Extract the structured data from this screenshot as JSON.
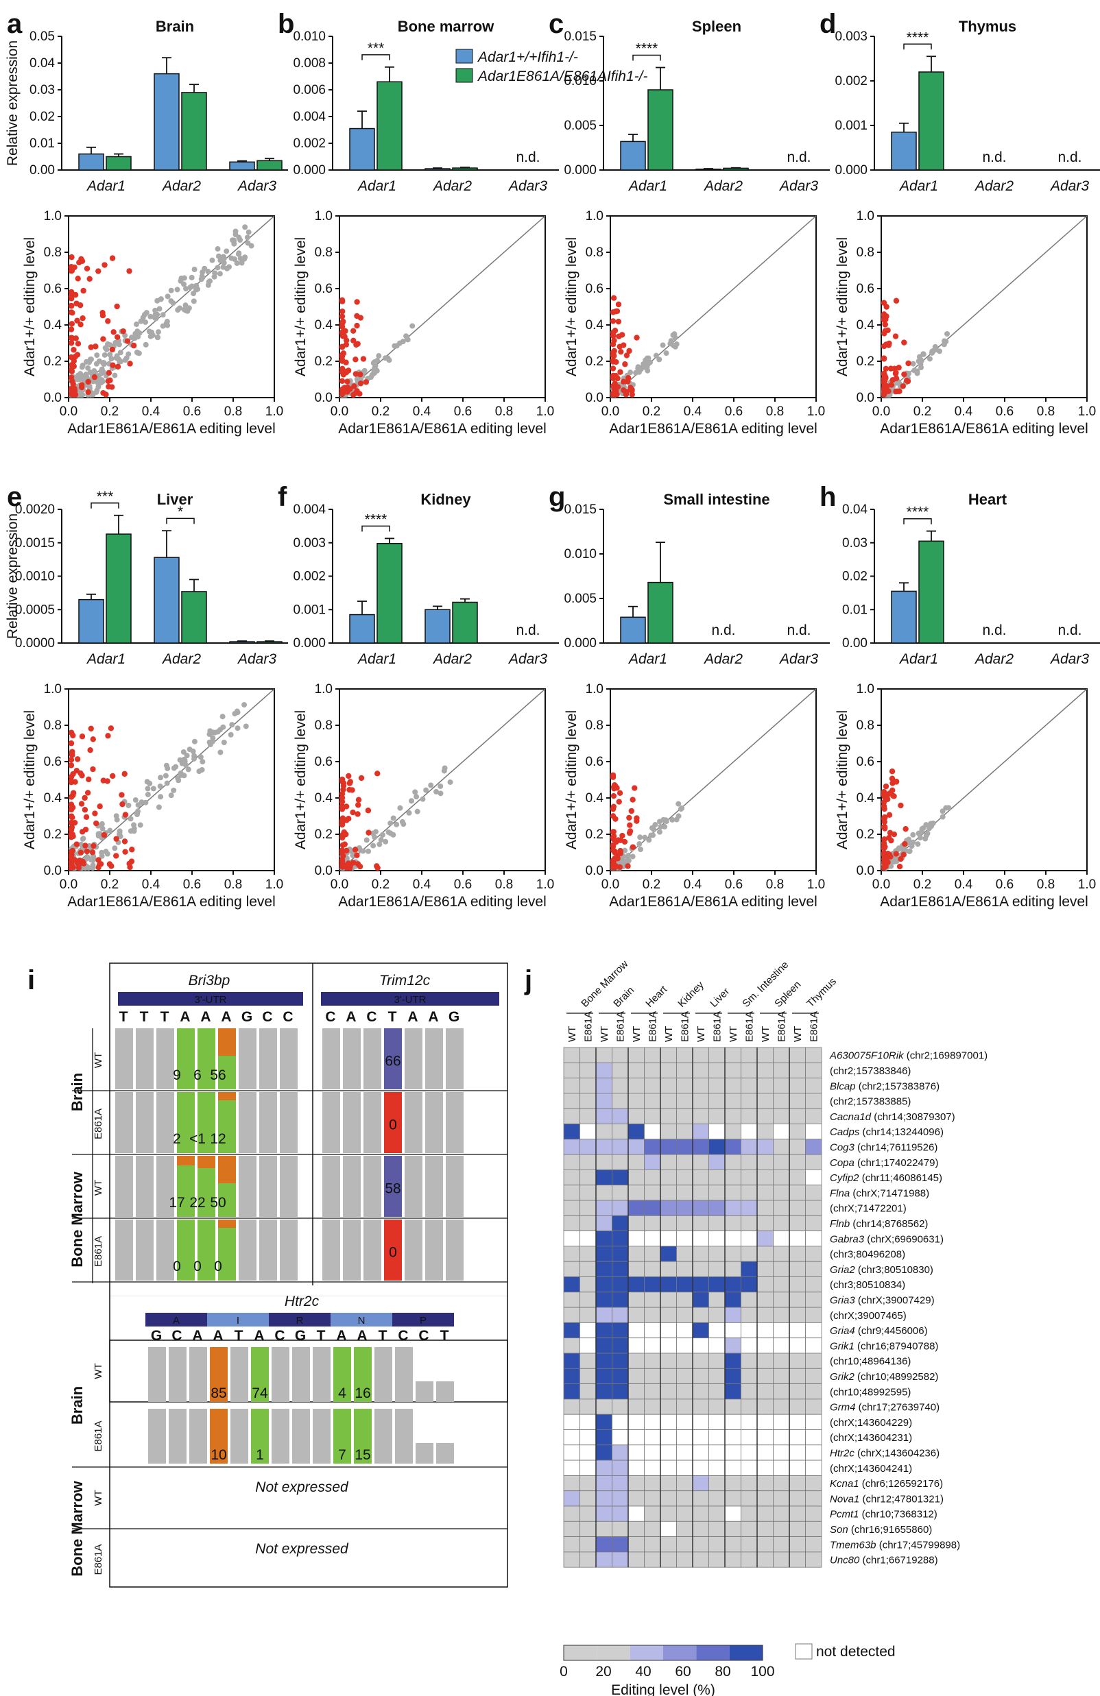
{
  "colors": {
    "wt": "#5b95cf",
    "mut": "#2e9e5b",
    "point_red": "#e03325",
    "point_gray": "#a9a9a9",
    "A": "#7ac143",
    "G": "#d9731e",
    "C": "#5b5aa3",
    "T": "#e03325",
    "grayCell": "#b8b8b8",
    "heatDark": "#2f4fae"
  },
  "panels_top": [
    {
      "letter": "a",
      "title": "Brain",
      "ylim": [
        0,
        0.05
      ],
      "ticks": [
        "0.00",
        "0.01",
        "0.02",
        "0.03",
        "0.04",
        "0.05"
      ],
      "genes": [
        "Adar1",
        "Adar2",
        "Adar3"
      ],
      "wt": [
        0.006,
        0.036,
        0.003
      ],
      "wt_err": [
        0.0025,
        0.006,
        0.0004
      ],
      "mut": [
        0.005,
        0.029,
        0.0035
      ],
      "mut_err": [
        0.001,
        0.003,
        0.0008
      ],
      "nd": [
        false,
        false,
        false
      ],
      "sig": [],
      "scatter_seed": 1
    },
    {
      "letter": "b",
      "title": "Bone marrow",
      "ylim": [
        0,
        0.01
      ],
      "ticks": [
        "0.000",
        "0.002",
        "0.004",
        "0.006",
        "0.008",
        "0.010"
      ],
      "genes": [
        "Adar1",
        "Adar2",
        "Adar3"
      ],
      "wt": [
        0.0031,
        0.0001,
        0
      ],
      "wt_err": [
        0.0013,
        5e-05,
        0
      ],
      "mut": [
        0.0066,
        0.00015,
        0
      ],
      "mut_err": [
        0.0011,
        5e-05,
        0
      ],
      "nd": [
        false,
        false,
        true
      ],
      "sig": [
        {
          "g": 0,
          "t": "***"
        }
      ],
      "scatter_seed": 2
    },
    {
      "letter": "c",
      "title": "Spleen",
      "ylim": [
        0,
        0.015
      ],
      "ticks": [
        "0.000",
        "0.005",
        "0.010",
        "0.015"
      ],
      "genes": [
        "Adar1",
        "Adar2",
        "Adar3"
      ],
      "wt": [
        0.0032,
        0.0001,
        0
      ],
      "wt_err": [
        0.0008,
        5e-05,
        0
      ],
      "mut": [
        0.009,
        0.0002,
        0
      ],
      "mut_err": [
        0.0025,
        5e-05,
        0
      ],
      "nd": [
        false,
        false,
        true
      ],
      "sig": [
        {
          "g": 0,
          "t": "****"
        }
      ],
      "scatter_seed": 3
    },
    {
      "letter": "d",
      "title": "Thymus",
      "ylim": [
        0,
        0.003
      ],
      "ticks": [
        "0.000",
        "0.001",
        "0.002",
        "0.003"
      ],
      "genes": [
        "Adar1",
        "Adar2",
        "Adar3"
      ],
      "wt": [
        0.00085,
        0,
        0
      ],
      "wt_err": [
        0.0002,
        0,
        0
      ],
      "mut": [
        0.0022,
        0,
        0
      ],
      "mut_err": [
        0.00035,
        0,
        0
      ],
      "nd": [
        false,
        true,
        true
      ],
      "sig": [
        {
          "g": 0,
          "t": "****"
        }
      ],
      "scatter_seed": 4
    },
    {
      "letter": "e",
      "title": "Liver",
      "ylim": [
        0,
        0.002
      ],
      "ticks": [
        "0.0000",
        "0.0005",
        "0.0010",
        "0.0015",
        "0.0020"
      ],
      "genes": [
        "Adar1",
        "Adar2",
        "Adar3"
      ],
      "wt": [
        0.00065,
        0.00128,
        2e-05
      ],
      "wt_err": [
        8e-05,
        0.0004,
        1e-05
      ],
      "mut": [
        0.00163,
        0.00077,
        2e-05
      ],
      "mut_err": [
        0.00028,
        0.00018,
        1e-05
      ],
      "nd": [
        false,
        false,
        false
      ],
      "sig": [
        {
          "g": 0,
          "t": "***"
        },
        {
          "g": 1,
          "t": "*"
        }
      ],
      "scatter_seed": 5
    },
    {
      "letter": "f",
      "title": "Kidney",
      "ylim": [
        0,
        0.004
      ],
      "ticks": [
        "0.000",
        "0.001",
        "0.002",
        "0.003",
        "0.004"
      ],
      "genes": [
        "Adar1",
        "Adar2",
        "Adar3"
      ],
      "wt": [
        0.00085,
        0.001,
        0
      ],
      "wt_err": [
        0.0004,
        0.0001,
        0
      ],
      "mut": [
        0.00298,
        0.00122,
        0
      ],
      "mut_err": [
        0.00015,
        0.0001,
        0
      ],
      "nd": [
        false,
        false,
        true
      ],
      "sig": [
        {
          "g": 0,
          "t": "****"
        }
      ],
      "scatter_seed": 6
    },
    {
      "letter": "g",
      "title": "Small intestine",
      "ylim": [
        0,
        0.015
      ],
      "ticks": [
        "0.000",
        "0.005",
        "0.010",
        "0.015"
      ],
      "genes": [
        "Adar1",
        "Adar2",
        "Adar3"
      ],
      "wt": [
        0.0029,
        0,
        0
      ],
      "wt_err": [
        0.0012,
        0,
        0
      ],
      "mut": [
        0.0068,
        0,
        0
      ],
      "mut_err": [
        0.0045,
        0,
        0
      ],
      "nd": [
        false,
        true,
        true
      ],
      "sig": [],
      "scatter_seed": 7
    },
    {
      "letter": "h",
      "title": "Heart",
      "ylim": [
        0,
        0.04
      ],
      "ticks": [
        "0.00",
        "0.01",
        "0.02",
        "0.03",
        "0.04"
      ],
      "genes": [
        "Adar1",
        "Adar2",
        "Adar3"
      ],
      "wt": [
        0.0155,
        0,
        0
      ],
      "wt_err": [
        0.0025,
        0,
        0
      ],
      "mut": [
        0.0305,
        0,
        0
      ],
      "mut_err": [
        0.003,
        0,
        0
      ],
      "nd": [
        false,
        true,
        true
      ],
      "sig": [
        {
          "g": 0,
          "t": "****"
        }
      ],
      "scatter_seed": 8
    }
  ],
  "labels": {
    "rel_expr": "Relative expression",
    "nd": "n.d.",
    "legend_wt": "Adar1+/+Ifih1-/-",
    "legend_mut": "Adar1E861A/E861AIfih1-/-",
    "scatter_x": "Adar1E861A/E861A editing level",
    "scatter_y": "Adar1+/+ editing level",
    "scatter_ticks": [
      "0.0",
      "0.2",
      "0.4",
      "0.6",
      "0.8",
      "1.0"
    ]
  },
  "panel_i": {
    "letter": "i",
    "gene1": "Bri3bp",
    "gene2": "Trim12c",
    "utr1": "3'-UTR",
    "utr2": "3'-UTR",
    "seq1": [
      "T",
      "T",
      "T",
      "A",
      "A",
      "A",
      "G",
      "C",
      "C"
    ],
    "seq2": [
      "C",
      "A",
      "C",
      "T",
      "A",
      "A",
      "G"
    ],
    "tissues": [
      "Brain",
      "Bone Marrow"
    ],
    "genotypes": [
      "WT",
      "E861A"
    ],
    "bri_values": [
      [
        "9",
        "6",
        "56"
      ],
      [
        "2",
        "<1",
        "12"
      ],
      [
        "17",
        "22",
        "50"
      ],
      [
        "0",
        "0",
        "0"
      ]
    ],
    "trim_values": [
      "66",
      "0",
      "58",
      "0"
    ],
    "htr_gene": "Htr2c",
    "htr_aa": [
      "A",
      "I",
      "R",
      "N",
      "P"
    ],
    "htr_seq": [
      "G",
      "C",
      "A",
      "A",
      "T",
      "A",
      "C",
      "G",
      "T",
      "A",
      "A",
      "T",
      "C",
      "C",
      "T"
    ],
    "htr_values": [
      [
        "85",
        "74",
        "4",
        "16"
      ],
      [
        "10",
        "1",
        "7",
        "15"
      ]
    ],
    "not_expressed": "Not expressed"
  },
  "panel_j": {
    "letter": "j",
    "tissues": [
      "Bone Marrow",
      "Brain",
      "Heart",
      "Kidney",
      "Liver",
      "Sm. Intestine",
      "Spleen",
      "Thymus"
    ],
    "cols": [
      "WT",
      "E861A"
    ],
    "rows": [
      {
        "gene": "A630075F10Rik",
        "loc": "(chr2;169897001)"
      },
      {
        "gene": "",
        "loc": "(chr2;157383846)"
      },
      {
        "gene": "Blcap",
        "loc": "(chr2;157383876)"
      },
      {
        "gene": "",
        "loc": "(chr2;157383885)"
      },
      {
        "gene": "Cacna1d",
        "loc": "(chr14;30879307)"
      },
      {
        "gene": "Cadps",
        "loc": "(chr14;13244096)"
      },
      {
        "gene": "Cog3",
        "loc": "(chr14;76119526)"
      },
      {
        "gene": "Copa",
        "loc": "(chr1;174022479)"
      },
      {
        "gene": "Cyfip2",
        "loc": "(chr11;46086145)"
      },
      {
        "gene": "Flna",
        "loc": "(chrX;71471988)"
      },
      {
        "gene": "",
        "loc": "(chrX;71472201)"
      },
      {
        "gene": "Flnb",
        "loc": "(chr14;8768562)"
      },
      {
        "gene": "Gabra3",
        "loc": "(chrX;69690631)"
      },
      {
        "gene": "",
        "loc": "(chr3;80496208)"
      },
      {
        "gene": "Gria2",
        "loc": "(chr3;80510830)"
      },
      {
        "gene": "",
        "loc": "(chr3;80510834)"
      },
      {
        "gene": "Gria3",
        "loc": "(chrX;39007429)"
      },
      {
        "gene": "",
        "loc": "(chrX;39007465)"
      },
      {
        "gene": "Gria4",
        "loc": "(chr9;4456006)"
      },
      {
        "gene": "Grik1",
        "loc": "(chr16;87940788)"
      },
      {
        "gene": "",
        "loc": "(chr10;48964136)"
      },
      {
        "gene": "Grik2",
        "loc": "(chr10;48992582)"
      },
      {
        "gene": "",
        "loc": "(chr10;48992595)"
      },
      {
        "gene": "Grm4",
        "loc": "(chr17;27639740)"
      },
      {
        "gene": "",
        "loc": "(chrX;143604229)"
      },
      {
        "gene": "",
        "loc": "(chrX;143604231)"
      },
      {
        "gene": "Htr2c",
        "loc": "(chrX;143604236)"
      },
      {
        "gene": "",
        "loc": "(chrX;143604241)"
      },
      {
        "gene": "Kcna1",
        "loc": "(chr6;126592176)"
      },
      {
        "gene": "Nova1",
        "loc": "(chr12;47801321)"
      },
      {
        "gene": "Pcmt1",
        "loc": "(chr10;7368312)"
      },
      {
        "gene": "Son",
        "loc": "(chr16;91655860)"
      },
      {
        "gene": "Tmem63b",
        "loc": "(chr17;45799898)"
      },
      {
        "gene": "Unc80",
        "loc": "(chr1;66719288)"
      }
    ],
    "matrix": [
      [
        1,
        1,
        1,
        1,
        1,
        1,
        1,
        1,
        1,
        1,
        1,
        1,
        1,
        1,
        1,
        1
      ],
      [
        1,
        1,
        2,
        1,
        1,
        1,
        1,
        1,
        1,
        1,
        1,
        1,
        1,
        1,
        1,
        1
      ],
      [
        1,
        1,
        2,
        1,
        1,
        1,
        1,
        1,
        1,
        1,
        1,
        1,
        1,
        1,
        1,
        1
      ],
      [
        1,
        1,
        2,
        1,
        1,
        1,
        1,
        1,
        1,
        1,
        1,
        1,
        1,
        1,
        1,
        1
      ],
      [
        1,
        1,
        2,
        2,
        1,
        1,
        1,
        1,
        1,
        1,
        1,
        1,
        1,
        1,
        1,
        1
      ],
      [
        5,
        0,
        1,
        1,
        5,
        0,
        1,
        1,
        2,
        0,
        1,
        0,
        1,
        0,
        1,
        0
      ],
      [
        2,
        2,
        2,
        2,
        2,
        4,
        4,
        4,
        4,
        5,
        4,
        2,
        2,
        1,
        1,
        3
      ],
      [
        1,
        1,
        1,
        1,
        1,
        2,
        1,
        1,
        1,
        2,
        1,
        1,
        1,
        1,
        1,
        1
      ],
      [
        1,
        1,
        5,
        5,
        1,
        1,
        1,
        1,
        1,
        1,
        1,
        1,
        1,
        1,
        1,
        0
      ],
      [
        1,
        1,
        1,
        1,
        1,
        1,
        1,
        1,
        1,
        1,
        1,
        1,
        1,
        1,
        1,
        1
      ],
      [
        1,
        1,
        2,
        2,
        4,
        4,
        3,
        3,
        3,
        3,
        2,
        2,
        1,
        1,
        1,
        1
      ],
      [
        1,
        1,
        2,
        5,
        1,
        1,
        1,
        1,
        1,
        1,
        1,
        1,
        1,
        1,
        1,
        1
      ],
      [
        0,
        0,
        5,
        5,
        0,
        0,
        0,
        0,
        0,
        0,
        0,
        0,
        2,
        0,
        0,
        0
      ],
      [
        1,
        1,
        5,
        5,
        1,
        1,
        5,
        1,
        1,
        1,
        1,
        1,
        1,
        1,
        1,
        1
      ],
      [
        1,
        1,
        5,
        5,
        1,
        1,
        1,
        1,
        1,
        1,
        1,
        5,
        1,
        1,
        1,
        1
      ],
      [
        5,
        1,
        5,
        5,
        5,
        5,
        5,
        5,
        5,
        5,
        5,
        5,
        1,
        1,
        1,
        1
      ],
      [
        1,
        1,
        5,
        5,
        1,
        1,
        1,
        1,
        5,
        1,
        5,
        1,
        1,
        1,
        1,
        1
      ],
      [
        1,
        1,
        2,
        2,
        1,
        1,
        1,
        1,
        1,
        1,
        2,
        1,
        1,
        1,
        1,
        1
      ],
      [
        5,
        0,
        5,
        5,
        0,
        0,
        0,
        0,
        5,
        0,
        0,
        0,
        0,
        0,
        0,
        0
      ],
      [
        1,
        0,
        5,
        5,
        0,
        0,
        0,
        0,
        0,
        0,
        2,
        0,
        0,
        0,
        0,
        0
      ],
      [
        5,
        1,
        5,
        5,
        1,
        1,
        1,
        1,
        1,
        1,
        5,
        1,
        1,
        1,
        1,
        1
      ],
      [
        5,
        1,
        5,
        5,
        1,
        1,
        1,
        1,
        1,
        1,
        5,
        1,
        1,
        1,
        1,
        1
      ],
      [
        5,
        1,
        5,
        5,
        1,
        1,
        1,
        1,
        1,
        1,
        5,
        1,
        1,
        1,
        1,
        1
      ],
      [
        1,
        1,
        1,
        1,
        1,
        1,
        1,
        1,
        1,
        1,
        1,
        1,
        1,
        1,
        1,
        1
      ],
      [
        0,
        0,
        5,
        0,
        0,
        0,
        0,
        0,
        0,
        0,
        0,
        0,
        0,
        0,
        0,
        0
      ],
      [
        0,
        0,
        5,
        0,
        0,
        0,
        0,
        0,
        0,
        0,
        0,
        0,
        0,
        0,
        0,
        0
      ],
      [
        0,
        0,
        5,
        2,
        0,
        0,
        0,
        0,
        0,
        0,
        0,
        0,
        0,
        0,
        0,
        0
      ],
      [
        0,
        0,
        2,
        2,
        0,
        0,
        0,
        0,
        0,
        0,
        0,
        0,
        0,
        0,
        0,
        0
      ],
      [
        1,
        1,
        2,
        2,
        1,
        1,
        1,
        1,
        2,
        1,
        1,
        1,
        1,
        1,
        1,
        1
      ],
      [
        2,
        1,
        2,
        2,
        1,
        1,
        1,
        1,
        1,
        1,
        1,
        1,
        1,
        1,
        1,
        1
      ],
      [
        1,
        1,
        2,
        2,
        0,
        1,
        1,
        1,
        1,
        1,
        0,
        1,
        1,
        1,
        1,
        1
      ],
      [
        1,
        1,
        1,
        1,
        1,
        1,
        0,
        1,
        1,
        1,
        1,
        1,
        1,
        1,
        1,
        1
      ],
      [
        1,
        1,
        4,
        4,
        1,
        1,
        1,
        1,
        1,
        1,
        1,
        1,
        1,
        1,
        1,
        1
      ],
      [
        1,
        1,
        2,
        2,
        1,
        1,
        1,
        1,
        1,
        1,
        1,
        1,
        1,
        1,
        1,
        1
      ]
    ],
    "legend_ticks": [
      "0",
      "20",
      "40",
      "60",
      "80",
      "100"
    ],
    "legend_title": "Editing level (%)",
    "not_detected": "not detected"
  }
}
